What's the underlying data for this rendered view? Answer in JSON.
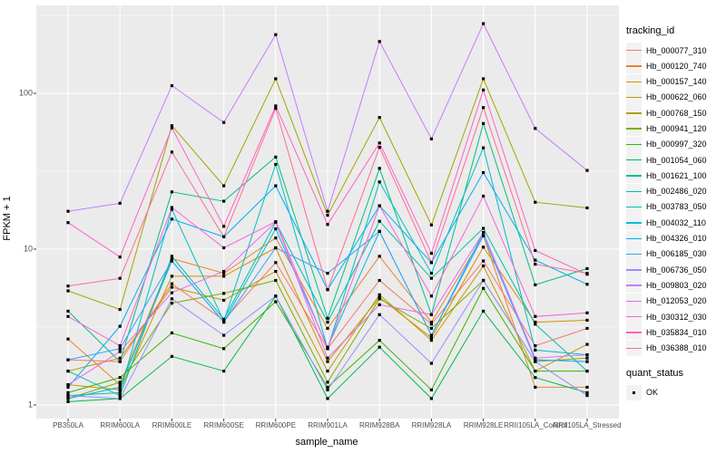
{
  "axes": {
    "y_title": "FPKM + 1",
    "x_title": "sample_name"
  },
  "legend": {
    "tracking_title": "tracking_id",
    "quant_title": "quant_status",
    "quant_ok_label": "OK"
  },
  "colors": {
    "panel_bg": "#EBEBEB",
    "grid_major": "#FFFFFF",
    "grid_minor": "#F7F7F7",
    "legend_key_bg": "#F2F2F2",
    "tick_text": "#4D4D4D",
    "tick_mark": "#333333",
    "point": "#000000"
  },
  "chart_data": {
    "type": "line",
    "title": "",
    "xlabel": "sample_name",
    "ylabel": "FPKM + 1",
    "y_scale": "log10",
    "ylim": [
      1,
      366
    ],
    "y_ticks": [
      1,
      10,
      100
    ],
    "y_minor_ticks": [
      3.162,
      31.62,
      316.2
    ],
    "grid": true,
    "legend_position": "right",
    "point_shape": "filled-square",
    "point_color": "#000000",
    "point_legend_label": "OK",
    "categories": [
      "PB350LA",
      "RRIM600LA",
      "RRIM600LE",
      "RRIM600SE",
      "RRIM600PE",
      "RRIM901LA",
      "RRIM928BA",
      "RRIM928LA",
      "RRIM928LE",
      "RRII105LA_Control",
      "RRII105LA_Stressed"
    ],
    "series": [
      {
        "name": "Hb_000077_310",
        "color": "#F8766D",
        "values": [
          1.95,
          1.9,
          6.0,
          3.5,
          8.2,
          2.3,
          6.3,
          3.3,
          8.4,
          2.4,
          3.1
        ]
      },
      {
        "name": "Hb_000120_740",
        "color": "#EA8331",
        "values": [
          2.65,
          1.35,
          8.7,
          7.0,
          11.8,
          3.1,
          9.0,
          3.4,
          12.2,
          1.3,
          1.3
        ]
      },
      {
        "name": "Hb_000157_140",
        "color": "#D89000",
        "values": [
          1.35,
          1.25,
          6.7,
          6.7,
          10.2,
          1.9,
          4.9,
          2.7,
          10.3,
          3.4,
          3.5
        ]
      },
      {
        "name": "Hb_000622_060",
        "color": "#C09B00",
        "values": [
          1.65,
          2.0,
          5.7,
          4.7,
          7.2,
          1.65,
          5.1,
          2.6,
          7.8,
          1.65,
          2.45
        ]
      },
      {
        "name": "Hb_000768_150",
        "color": "#A3A500",
        "values": [
          5.4,
          4.1,
          62,
          25.5,
          124,
          16.5,
          70,
          14.3,
          124,
          20,
          18.4
        ]
      },
      {
        "name": "Hb_000941_120",
        "color": "#7CAE00",
        "values": [
          1.1,
          1.4,
          4.5,
          5.2,
          6.3,
          1.4,
          4.8,
          3.1,
          6.3,
          1.9,
          2.0
        ]
      },
      {
        "name": "Hb_000997_320",
        "color": "#39B600",
        "values": [
          1.2,
          1.5,
          2.9,
          2.3,
          4.6,
          1.3,
          2.6,
          1.25,
          5.6,
          1.65,
          1.65
        ]
      },
      {
        "name": "Hb_001054_060",
        "color": "#00BB4E",
        "values": [
          1.05,
          1.1,
          2.05,
          1.65,
          5.0,
          1.1,
          2.35,
          1.1,
          4.0,
          1.5,
          1.2
        ]
      },
      {
        "name": "Hb_001621_100",
        "color": "#00C087",
        "values": [
          4.0,
          1.9,
          23.3,
          20.3,
          39,
          3.6,
          33,
          3.8,
          64,
          5.9,
          7.5
        ]
      },
      {
        "name": "Hb_002486_020",
        "color": "#00C1A3",
        "values": [
          1.65,
          1.15,
          9.0,
          3.55,
          14.9,
          3.4,
          15.1,
          6.5,
          13.6,
          3.3,
          1.65
        ]
      },
      {
        "name": "Hb_003783_050",
        "color": "#00BFC4",
        "values": [
          1.15,
          1.2,
          18.0,
          3.45,
          35,
          2.3,
          27,
          7.0,
          44.7,
          2.25,
          2.1
        ]
      },
      {
        "name": "Hb_004032_110",
        "color": "#00BAE0",
        "values": [
          1.1,
          1.3,
          8.4,
          3.4,
          13.5,
          2.35,
          13,
          2.8,
          12.8,
          1.95,
          1.9
        ]
      },
      {
        "name": "Hb_004326_010",
        "color": "#00B0F6",
        "values": [
          1.3,
          3.2,
          15.6,
          12,
          25.5,
          5.5,
          19,
          8.2,
          31,
          8.5,
          5.95
        ]
      },
      {
        "name": "Hb_006185_030",
        "color": "#35A2FF",
        "values": [
          1.95,
          2.3,
          8.4,
          3.4,
          10.2,
          7.0,
          13,
          2.8,
          12.2,
          1.95,
          1.9
        ]
      },
      {
        "name": "Hb_006736_050",
        "color": "#9590FF",
        "values": [
          1.15,
          1.1,
          4.8,
          2.8,
          5.0,
          1.25,
          3.8,
          1.85,
          6.3,
          1.9,
          1.15
        ]
      },
      {
        "name": "Hb_009803_020",
        "color": "#C77CFF",
        "values": [
          17.5,
          19.7,
          112,
          65,
          238,
          17.5,
          215,
          51,
          280,
          59.5,
          32
        ]
      },
      {
        "name": "Hb_012053_020",
        "color": "#E76BF3",
        "values": [
          1.35,
          2.2,
          5.25,
          7.2,
          14.9,
          2.0,
          4.4,
          3.8,
          12.8,
          2.0,
          2.1
        ]
      },
      {
        "name": "Hb_030312_030",
        "color": "#FA62DB",
        "values": [
          3.7,
          2.4,
          18.5,
          10.2,
          15,
          2.3,
          19,
          5.0,
          21.9,
          3.7,
          3.9
        ]
      },
      {
        "name": "Hb_035834_010",
        "color": "#FF61C9",
        "values": [
          14.8,
          8.9,
          60,
          14,
          83,
          14.4,
          48,
          9.4,
          105,
          9.8,
          6.9
        ]
      },
      {
        "name": "Hb_036388_010",
        "color": "#FF6A98",
        "values": [
          5.8,
          6.5,
          42,
          12,
          80,
          5.5,
          45,
          8.2,
          81,
          8.0,
          7.0
        ]
      }
    ]
  }
}
